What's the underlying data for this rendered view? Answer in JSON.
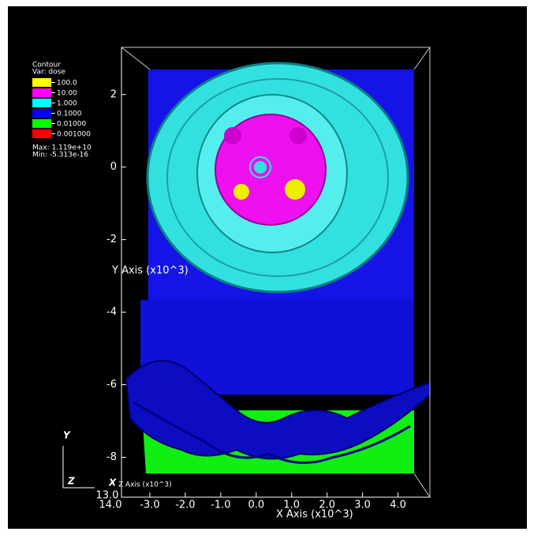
{
  "chart_data": {
    "type": "contour",
    "legend": {
      "title": "Contour",
      "variable": "Var: dose",
      "max": "Max:  1.119e+10",
      "min": "Min: -5.313e-16"
    },
    "series": [
      {
        "name": "100.0",
        "color": "#ffff00"
      },
      {
        "name": "10.00",
        "color": "#ff00ff"
      },
      {
        "name": "1.000",
        "color": "#00ffff"
      },
      {
        "name": "0.1000",
        "color": "#0000ff"
      },
      {
        "name": "0.01000",
        "color": "#00ff00"
      },
      {
        "name": "0.001000",
        "color": "#ff0000"
      }
    ],
    "ylabel": "Y Axis (x10^3)",
    "xlabel": "X Axis (x10^3)",
    "zlabel": "Z Axis (x10^3)",
    "ylim": [
      -9.1,
      3.3
    ],
    "yticks": [
      2,
      0,
      -2,
      -4,
      -6,
      -8
    ],
    "xlim": [
      -3.8,
      4.9
    ],
    "xticks": [
      {
        "value": -3,
        "label": "-3.0"
      },
      {
        "value": -2,
        "label": "-2.0"
      },
      {
        "value": -1,
        "label": "-1.0"
      },
      {
        "value": 0,
        "label": "0.0"
      },
      {
        "value": 1,
        "label": "1.0"
      },
      {
        "value": 2,
        "label": "2.0"
      },
      {
        "value": 3,
        "label": "3.0"
      },
      {
        "value": 4,
        "label": "4.0"
      }
    ],
    "zticks": [
      {
        "value": 14,
        "label": "14.0"
      },
      {
        "value": 13,
        "label": "13.0"
      }
    ],
    "triad": [
      "Y",
      "Z",
      "X"
    ]
  }
}
